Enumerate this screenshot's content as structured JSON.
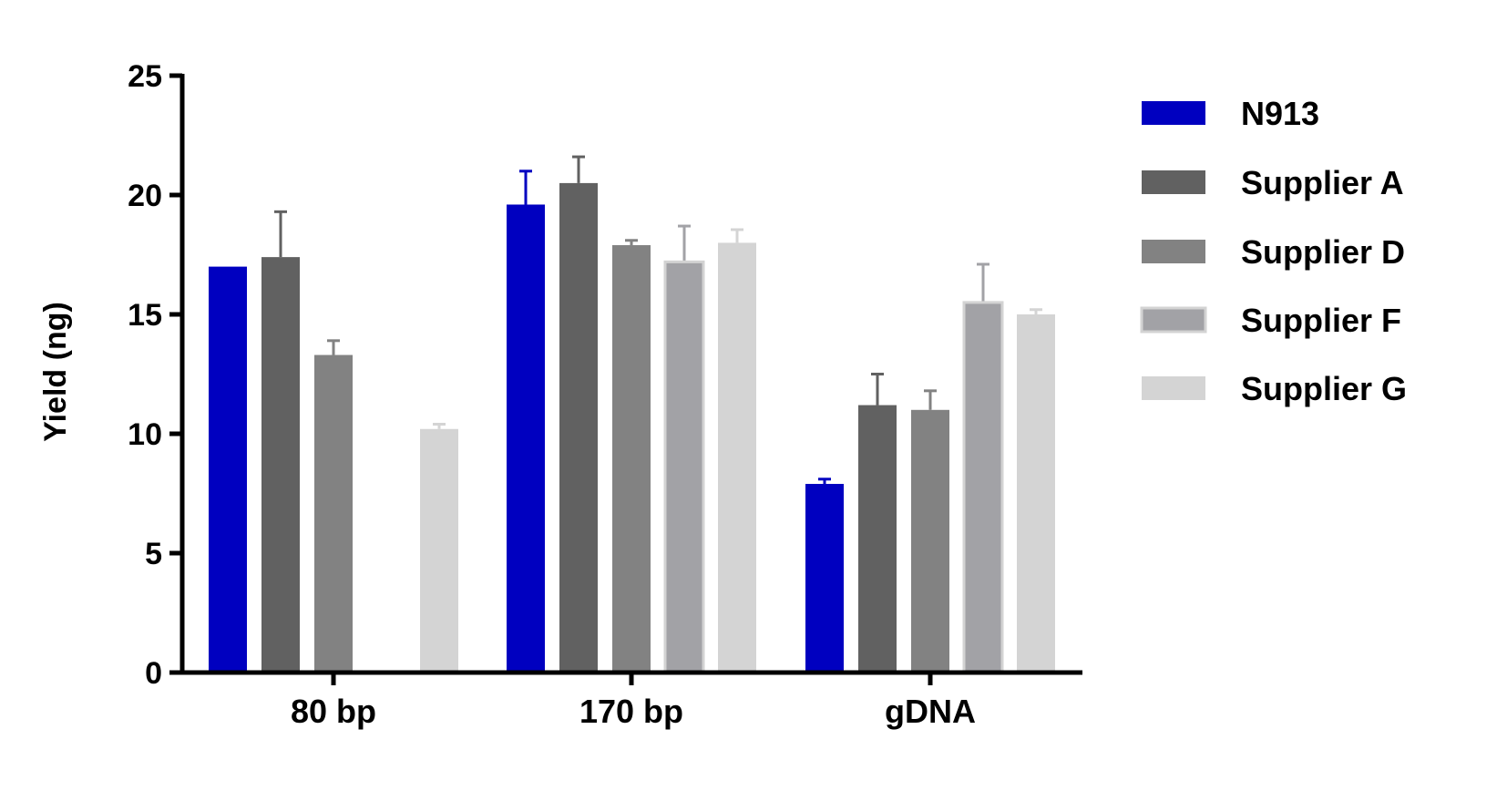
{
  "chart_data": {
    "type": "bar",
    "title": "",
    "xlabel": "",
    "ylabel": "Yield (ng)",
    "ylim": [
      0,
      25
    ],
    "yticks": [
      "0",
      "5",
      "10",
      "15",
      "20",
      "25"
    ],
    "categories": [
      "80 bp",
      "170 bp",
      "gDNA"
    ],
    "error_bars": "upper only",
    "legend_position": "right",
    "series": [
      {
        "name": "N913",
        "color": "#0000C0",
        "values": [
          17.0,
          19.6,
          7.9
        ],
        "errors": [
          0,
          1.4,
          0.2
        ]
      },
      {
        "name": "Supplier A",
        "color": "#616161",
        "values": [
          17.4,
          20.5,
          11.2
        ],
        "errors": [
          1.9,
          1.1,
          1.3
        ]
      },
      {
        "name": "Supplier D",
        "color": "#828282",
        "values": [
          13.3,
          17.9,
          11.0
        ],
        "errors": [
          0.6,
          0.2,
          0.8
        ]
      },
      {
        "name": "Supplier F",
        "color": "#A2A2A6",
        "border": "#D3D3D3",
        "values": [
          null,
          17.2,
          15.5
        ],
        "errors": [
          null,
          1.5,
          1.6
        ]
      },
      {
        "name": "Supplier G",
        "color": "#D4D4D4",
        "values": [
          10.2,
          18.0,
          15.0
        ],
        "errors": [
          0.2,
          0.55,
          0.2
        ]
      }
    ]
  }
}
